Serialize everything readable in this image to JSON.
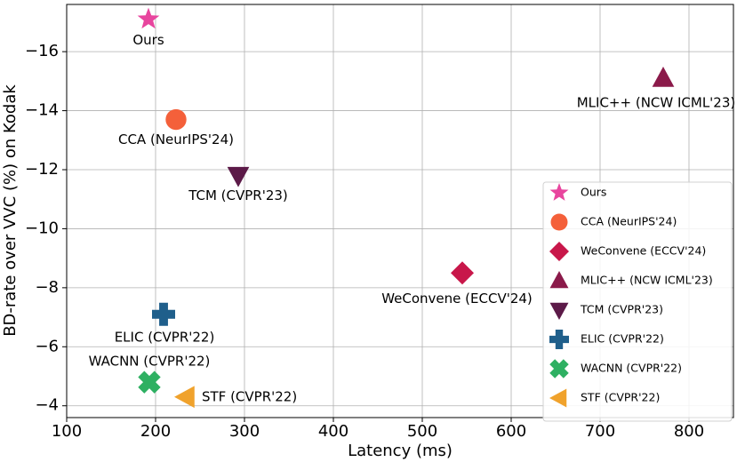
{
  "chart_data": {
    "type": "scatter",
    "xlabel": "Latency (ms)",
    "ylabel": "BD-rate over VVC (%) on Kodak",
    "xlim": [
      100,
      850
    ],
    "ylim": [
      -3.6,
      -17.6
    ],
    "xticks": [
      100,
      200,
      300,
      400,
      500,
      600,
      700,
      800
    ],
    "yticks": [
      {
        "value": -16,
        "label": "−16"
      },
      {
        "value": -14,
        "label": "−14"
      },
      {
        "value": -12,
        "label": "−12"
      },
      {
        "value": -10,
        "label": "−10"
      },
      {
        "value": -8,
        "label": "−8"
      },
      {
        "value": -6,
        "label": "−6"
      },
      {
        "value": -4,
        "label": "−4"
      }
    ],
    "grid": true,
    "legend": "lower right",
    "series": [
      {
        "name": "Ours",
        "color": "#e8459e",
        "marker": "star",
        "x": [
          192
        ],
        "values": [
          -17.1
        ]
      },
      {
        "name": "CCA (NeurIPS'24)",
        "color": "#f4603a",
        "marker": "circle",
        "x": [
          223
        ],
        "values": [
          -13.7
        ]
      },
      {
        "name": "WeConvene (ECCV'24)",
        "color": "#c8174a",
        "marker": "diamond",
        "x": [
          545
        ],
        "values": [
          -8.5
        ]
      },
      {
        "name": "MLIC++ (NCW ICML'23)",
        "color": "#8b1a4a",
        "marker": "triangle-up",
        "x": [
          771
        ],
        "values": [
          -15.1
        ]
      },
      {
        "name": "TCM (CVPR'23)",
        "color": "#5c1a48",
        "marker": "triangle-down",
        "x": [
          293
        ],
        "values": [
          -11.8
        ]
      },
      {
        "name": "ELIC (CVPR'22)",
        "color": "#1f5f8b",
        "marker": "plus",
        "x": [
          209
        ],
        "values": [
          -7.1
        ]
      },
      {
        "name": "WACNN (CVPR'22)",
        "color": "#2eb062",
        "marker": "x",
        "x": [
          193
        ],
        "values": [
          -4.8
        ]
      },
      {
        "name": "STF (CVPR'22)",
        "color": "#f0a22c",
        "marker": "triangle-left",
        "x": [
          234
        ],
        "values": [
          -4.3
        ]
      }
    ]
  }
}
